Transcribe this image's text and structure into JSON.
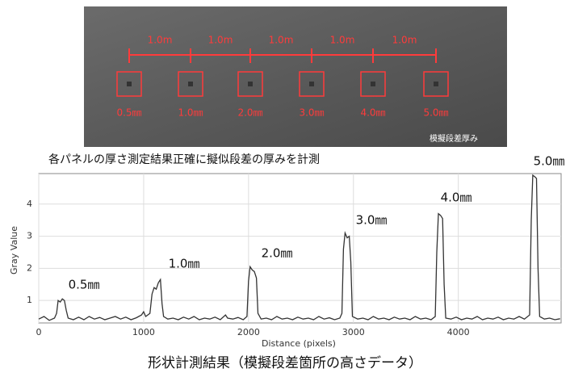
{
  "photo": {
    "spacings": [
      "1.0m",
      "1.0m",
      "1.0m",
      "1.0m",
      "1.0m"
    ],
    "markers": [
      "0.5㎜",
      "1.0㎜",
      "2.0㎜",
      "3.0㎜",
      "4.0㎜",
      "5.0㎜"
    ],
    "caption": "模擬段差厚み"
  },
  "heading": "各パネルの厚さ測定結果正確に擬似段差の厚みを計測",
  "caption": "形状計測結果（模擬段差箇所の高さデータ）",
  "chart_data": {
    "type": "line",
    "xlabel": "Distance (pixels)",
    "ylabel": "Gray Value",
    "annotations": [
      "0.5㎜",
      "1.0㎜",
      "2.0㎜",
      "3.0㎜",
      "4.0㎜",
      "5.0㎜"
    ],
    "xlim": [
      0,
      4980
    ],
    "ylim": [
      0.3,
      4.95
    ],
    "xticks": [
      0,
      1000,
      2000,
      3000,
      4000
    ],
    "yticks": [
      1,
      2,
      3,
      4
    ],
    "grid": true,
    "x": [
      0,
      50,
      100,
      150,
      170,
      185,
      205,
      225,
      245,
      262,
      280,
      330,
      380,
      430,
      480,
      530,
      580,
      630,
      680,
      730,
      780,
      830,
      880,
      930,
      980,
      1000,
      1020,
      1060,
      1080,
      1100,
      1120,
      1140,
      1160,
      1175,
      1190,
      1230,
      1280,
      1330,
      1380,
      1430,
      1480,
      1530,
      1580,
      1630,
      1680,
      1730,
      1780,
      1800,
      1850,
      1900,
      1950,
      1985,
      2000,
      2015,
      2035,
      2055,
      2075,
      2090,
      2120,
      2170,
      2220,
      2270,
      2320,
      2370,
      2420,
      2470,
      2520,
      2570,
      2620,
      2670,
      2720,
      2770,
      2820,
      2870,
      2890,
      2905,
      2920,
      2940,
      2960,
      2975,
      2990,
      3040,
      3090,
      3140,
      3190,
      3240,
      3290,
      3340,
      3390,
      3440,
      3490,
      3540,
      3590,
      3640,
      3690,
      3740,
      3780,
      3795,
      3810,
      3830,
      3850,
      3865,
      3880,
      3930,
      3980,
      4030,
      4080,
      4130,
      4180,
      4230,
      4280,
      4330,
      4380,
      4430,
      4480,
      4530,
      4580,
      4630,
      4680,
      4695,
      4710,
      4730,
      4745,
      4760,
      4775,
      4820,
      4870,
      4920,
      4970
    ],
    "series": [
      {
        "color": "#333333",
        "values": [
          0.42,
          0.5,
          0.38,
          0.45,
          0.6,
          1.0,
          0.95,
          1.05,
          1.0,
          0.7,
          0.45,
          0.4,
          0.48,
          0.4,
          0.5,
          0.42,
          0.47,
          0.4,
          0.45,
          0.5,
          0.42,
          0.48,
          0.4,
          0.46,
          0.55,
          0.65,
          0.5,
          0.6,
          1.2,
          1.4,
          1.35,
          1.55,
          1.65,
          0.9,
          0.5,
          0.42,
          0.45,
          0.4,
          0.48,
          0.42,
          0.5,
          0.4,
          0.45,
          0.42,
          0.48,
          0.4,
          0.55,
          0.45,
          0.42,
          0.47,
          0.4,
          0.5,
          1.6,
          2.05,
          1.95,
          1.9,
          1.7,
          0.6,
          0.42,
          0.45,
          0.4,
          0.5,
          0.42,
          0.45,
          0.4,
          0.48,
          0.42,
          0.45,
          0.4,
          0.5,
          0.42,
          0.46,
          0.4,
          0.45,
          0.6,
          2.6,
          3.1,
          2.95,
          3.0,
          2.2,
          0.5,
          0.42,
          0.45,
          0.4,
          0.5,
          0.42,
          0.45,
          0.4,
          0.48,
          0.42,
          0.45,
          0.4,
          0.5,
          0.42,
          0.45,
          0.4,
          0.5,
          2.5,
          3.7,
          3.65,
          3.55,
          1.5,
          0.45,
          0.42,
          0.48,
          0.4,
          0.45,
          0.42,
          0.5,
          0.4,
          0.45,
          0.42,
          0.48,
          0.4,
          0.45,
          0.42,
          0.5,
          0.42,
          0.55,
          3.5,
          4.9,
          4.85,
          4.8,
          2.0,
          0.5,
          0.42,
          0.45,
          0.4,
          0.43
        ]
      }
    ]
  }
}
